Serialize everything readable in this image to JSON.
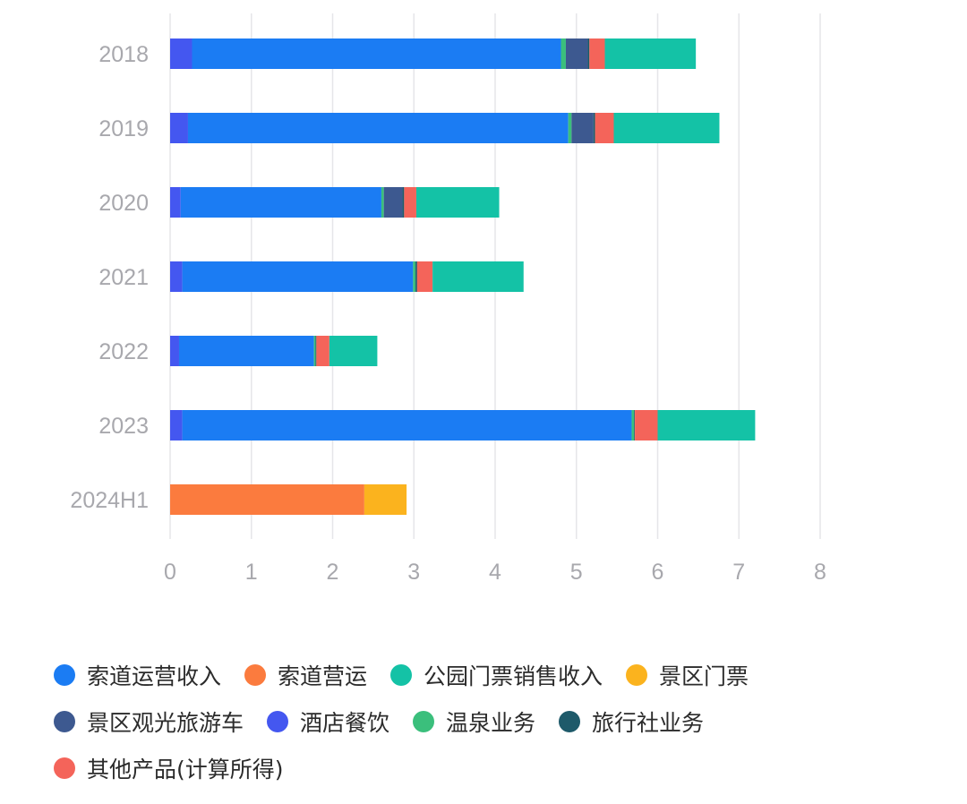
{
  "chart_data": {
    "type": "bar",
    "orientation": "horizontal",
    "stacked": true,
    "categories": [
      "2018",
      "2019",
      "2020",
      "2021",
      "2022",
      "2023",
      "2024H1"
    ],
    "xlim": [
      0,
      8
    ],
    "x_ticks": [
      "0",
      "1",
      "2",
      "3",
      "4",
      "5",
      "6",
      "7",
      "8"
    ],
    "grid": "vertical",
    "legend_position": "bottom",
    "series": [
      {
        "name": "酒店餐饮",
        "color": "#4457f0",
        "values": [
          0.27,
          0.22,
          0.13,
          0.15,
          0.11,
          0.15,
          0
        ]
      },
      {
        "name": "索道运营收入",
        "color": "#1b7cf3",
        "values": [
          4.54,
          4.68,
          2.47,
          2.84,
          1.66,
          5.53,
          0
        ]
      },
      {
        "name": "温泉业务",
        "color": "#3bbf7c",
        "values": [
          0.06,
          0.04,
          0.03,
          0.03,
          0.02,
          0.03,
          0
        ]
      },
      {
        "name": "景区观光旅游车",
        "color": "#3d5990",
        "values": [
          0.27,
          0.27,
          0.23,
          0,
          0,
          0,
          0
        ]
      },
      {
        "name": "旅行社业务",
        "color": "#1e5a6a",
        "values": [
          0.02,
          0.02,
          0.02,
          0.02,
          0.01,
          0.01,
          0
        ]
      },
      {
        "name": "其他产品(计算所得)",
        "color": "#f4645a",
        "values": [
          0.19,
          0.23,
          0.15,
          0.19,
          0.16,
          0.28,
          0
        ]
      },
      {
        "name": "公园门票销售收入",
        "color": "#14c2a6",
        "values": [
          1.12,
          1.3,
          1.02,
          1.12,
          0.59,
          1.2,
          0
        ]
      },
      {
        "name": "索道营运",
        "color": "#fb7b3e",
        "values": [
          0,
          0,
          0,
          0,
          0,
          0,
          2.39
        ]
      },
      {
        "name": "景区门票",
        "color": "#fbb31e",
        "values": [
          0,
          0,
          0,
          0,
          0,
          0,
          0.52
        ]
      }
    ]
  },
  "legend": {
    "rows": [
      [
        {
          "label": "索道运营收入",
          "color": "#1b7cf3"
        },
        {
          "label": "索道营运",
          "color": "#fb7b3e"
        },
        {
          "label": "公园门票销售收入",
          "color": "#14c2a6"
        },
        {
          "label": "景区门票",
          "color": "#fbb31e"
        }
      ],
      [
        {
          "label": "景区观光旅游车",
          "color": "#3d5990"
        },
        {
          "label": "酒店餐饮",
          "color": "#4457f0"
        },
        {
          "label": "温泉业务",
          "color": "#3bbf7c"
        },
        {
          "label": "旅行社业务",
          "color": "#1e5a6a"
        }
      ],
      [
        {
          "label": "其他产品(计算所得)",
          "color": "#f4645a"
        }
      ]
    ]
  }
}
